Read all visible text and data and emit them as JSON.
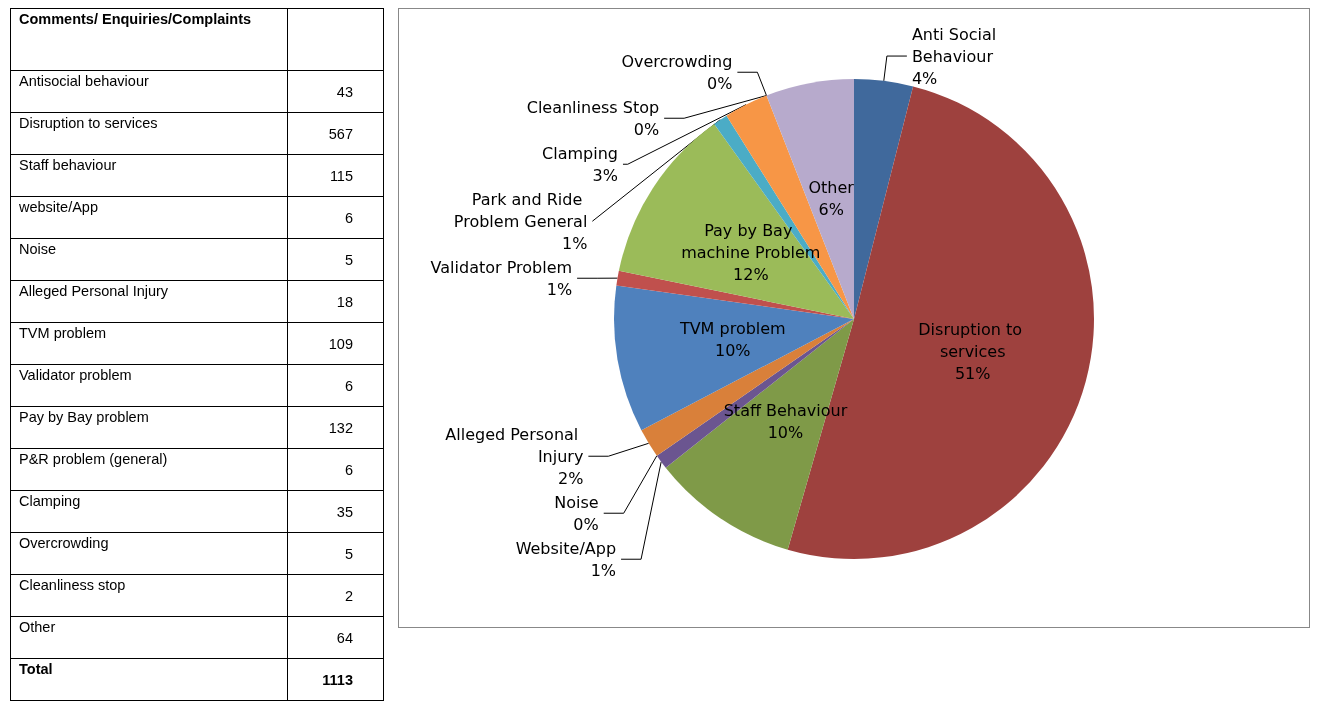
{
  "chart_data": [
    {
      "type": "other",
      "title": "Comments/ Enquiries/Complaints",
      "categories": [
        "Antisocial behaviour",
        "Disruption to services",
        "Staff behaviour",
        "website/App",
        "Noise",
        "Alleged Personal Injury",
        "TVM problem",
        "Validator problem",
        "Pay by Bay problem",
        "P&R problem (general)",
        "Clamping",
        "Overcrowding",
        "Cleanliness stop",
        "Other"
      ],
      "values": [
        43,
        567,
        115,
        6,
        5,
        18,
        109,
        6,
        132,
        6,
        35,
        5,
        2,
        64
      ],
      "data_labels": true,
      "annotations": [
        "Total",
        "1113"
      ]
    },
    {
      "type": "pie",
      "categories": [
        "Anti Social Behaviour",
        "Disruption to services",
        "Staff Behaviour",
        "Website/App",
        "Noise",
        "Alleged Personal Injury",
        "TVM problem",
        "Validator Problem",
        "Pay by Bay machine Problem",
        "Park and Ride Problem General",
        "Clamping",
        "Overcrowding",
        "Cleanliness Stop",
        "Other"
      ],
      "values": [
        4,
        51,
        10,
        1,
        0,
        2,
        10,
        1,
        12,
        1,
        3,
        0,
        0,
        6
      ],
      "value_labels": [
        "4%",
        "51%",
        "10%",
        "1%",
        "0%",
        "2%",
        "10%",
        "1%",
        "12%",
        "1%",
        "3%",
        "0%",
        "0%",
        "6%"
      ],
      "colors": [
        "#40699c",
        "#9e413e",
        "#7f9a48",
        "#6b5590",
        "#3aa0c0",
        "#d9803a",
        "#4f81bd",
        "#c0504d",
        "#9bbb59",
        "#4bacc6",
        "#f79646",
        "#8064a2",
        "#c9b8d8",
        "#b7aacc"
      ],
      "legend": false
    }
  ]
}
